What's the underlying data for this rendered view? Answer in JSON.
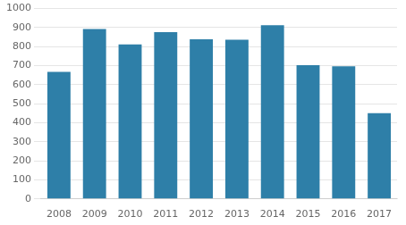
{
  "chart_data": {
    "type": "bar",
    "categories": [
      "2008",
      "2009",
      "2010",
      "2011",
      "2012",
      "2013",
      "2014",
      "2015",
      "2016",
      "2017"
    ],
    "values": [
      667,
      893,
      812,
      876,
      839,
      836,
      912,
      703,
      697,
      450
    ],
    "color": "#2e7fa8",
    "ylim": [
      0,
      1000
    ],
    "yticks": [
      0,
      100,
      200,
      300,
      400,
      500,
      600,
      700,
      800,
      900,
      1000
    ],
    "grid": true
  }
}
